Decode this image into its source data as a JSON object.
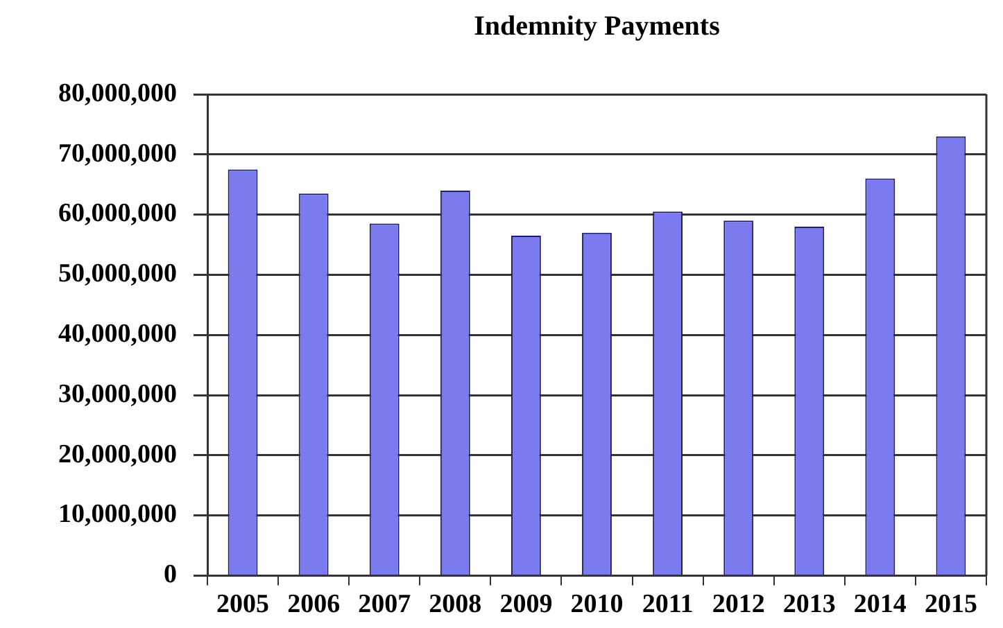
{
  "chart_data": {
    "type": "bar",
    "title": "Indemnity Payments",
    "categories": [
      "2005",
      "2006",
      "2007",
      "2008",
      "2009",
      "2010",
      "2011",
      "2012",
      "2013",
      "2014",
      "2015"
    ],
    "values": [
      67500000,
      63500000,
      58500000,
      64000000,
      56500000,
      57000000,
      60500000,
      59000000,
      58000000,
      66000000,
      73000000
    ],
    "color": "#7b7bef",
    "ylim": [
      0,
      80000000
    ],
    "yticks": [
      0,
      {
        "value": 10000000,
        "label": "10,000,000"
      },
      {
        "value": 20000000,
        "label": "20,000,000"
      },
      {
        "value": 30000000,
        "label": "30,000,000"
      },
      {
        "value": 40000000,
        "label": "40,000,000"
      },
      {
        "value": 50000000,
        "label": "50,000,000"
      },
      {
        "value": 60000000,
        "label": "60,000,000"
      },
      {
        "value": 70000000,
        "label": "70,000,000"
      },
      {
        "value": 80000000,
        "label": "80,000,000"
      }
    ],
    "grid": "y"
  }
}
